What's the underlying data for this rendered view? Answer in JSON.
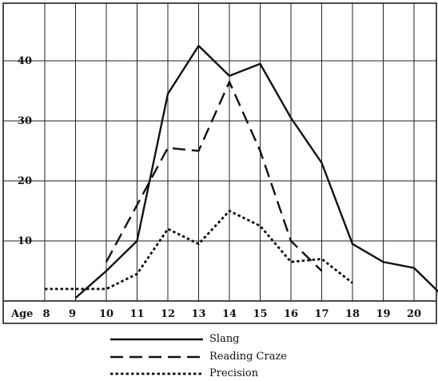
{
  "chart_data": {
    "type": "line",
    "title": "",
    "xlabel": "Age",
    "ylabel": "",
    "x": [
      8,
      9,
      10,
      11,
      12,
      13,
      14,
      15,
      16,
      17,
      18,
      19,
      20,
      21
    ],
    "x_tick_labels": [
      "8",
      "9",
      "10",
      "11",
      "12",
      "13",
      "14",
      "15",
      "16",
      "17",
      "18",
      "19",
      "20"
    ],
    "y_ticks": [
      10,
      20,
      30,
      40
    ],
    "ylim": [
      0,
      49
    ],
    "grid": true,
    "legend_position": "bottom",
    "series": [
      {
        "name": "Slang",
        "style": "solid",
        "x": [
          9,
          10,
          11,
          12,
          13,
          14,
          15,
          16,
          17,
          18,
          19,
          20,
          21
        ],
        "values": [
          0.5,
          5,
          10,
          34.5,
          42.5,
          37.5,
          39.5,
          30.5,
          23,
          9.5,
          6.5,
          5.5,
          0.5
        ]
      },
      {
        "name": "Reading Craze",
        "style": "dashed",
        "x": [
          10,
          11,
          12,
          13,
          14,
          15,
          16,
          17
        ],
        "values": [
          6.5,
          16,
          25.5,
          25,
          36.5,
          25,
          10,
          5
        ]
      },
      {
        "name": "Precision",
        "style": "dotted",
        "x": [
          8,
          9,
          10,
          11,
          12,
          13,
          14,
          15,
          16,
          17,
          18
        ],
        "values": [
          2,
          2,
          2,
          4.5,
          12,
          9.5,
          15,
          12.5,
          6.5,
          7,
          3
        ]
      }
    ],
    "colors": {
      "ink": "#111111"
    }
  }
}
